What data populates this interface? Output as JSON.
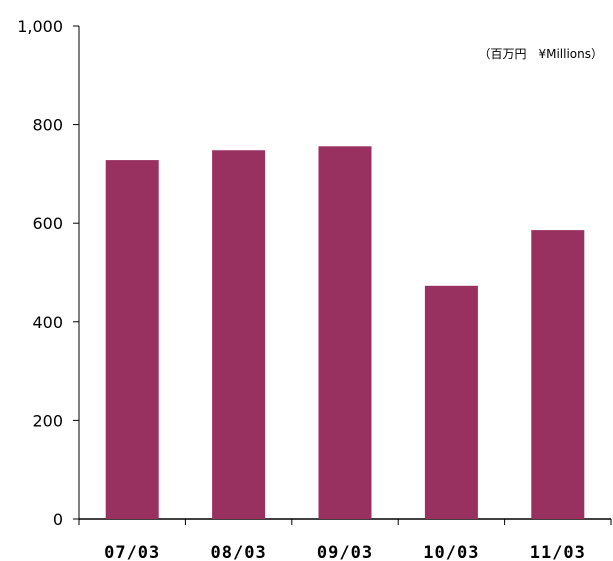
{
  "chart_data": {
    "type": "bar",
    "categories": [
      "07/03",
      "08/03",
      "09/03",
      "10/03",
      "11/03"
    ],
    "values": [
      728,
      748,
      756,
      473,
      586
    ],
    "unit_label": "（百万円　¥Millions）",
    "yticks": [
      "0",
      "200",
      "400",
      "600",
      "800",
      "1,000"
    ],
    "ylim": [
      0,
      1000
    ],
    "bar_color": "#98315f",
    "grid": false,
    "legend": "none"
  }
}
